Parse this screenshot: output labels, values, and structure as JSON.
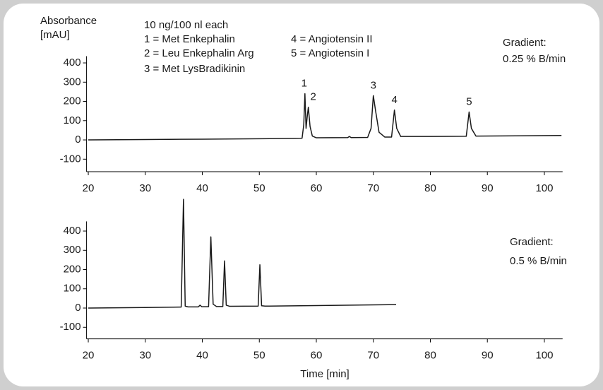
{
  "chart_data": [
    {
      "type": "line",
      "ylabel": [
        "Absorbance",
        "[mAU]"
      ],
      "annotations": [
        "10 ng/100 nl each",
        "1 = Met Enkephalin",
        "2 = Leu Enkephalin Arg",
        "3 = Met LysBradikinin",
        "4 = Angiotensin II",
        "5 = Angiotensin I"
      ],
      "gradient": [
        "Gradient:",
        "0.25 % B/min"
      ],
      "x": [
        20,
        30,
        40,
        50,
        55,
        57.5,
        57.8,
        58.0,
        58.2,
        58.4,
        58.6,
        58.9,
        59.3,
        60,
        65.5,
        65.8,
        66.1,
        69,
        69.6,
        70.0,
        70.4,
        71,
        72,
        73.2,
        73.7,
        74.1,
        74.8,
        80,
        86.3,
        86.8,
        87.2,
        88,
        95,
        103
      ],
      "values": [
        0,
        2,
        4,
        6,
        8,
        9,
        80,
        240,
        60,
        120,
        170,
        70,
        20,
        11,
        12,
        18,
        12,
        13,
        60,
        230,
        150,
        40,
        15,
        15,
        155,
        60,
        18,
        18,
        19,
        145,
        60,
        20,
        21,
        23
      ],
      "color": "#1a1a1a",
      "peak_labels": [
        {
          "label": "1",
          "x": 58.0
        },
        {
          "label": "2",
          "x": 58.6
        },
        {
          "label": "3",
          "x": 70.0
        },
        {
          "label": "4",
          "x": 73.7
        },
        {
          "label": "5",
          "x": 86.8
        }
      ],
      "xlim": [
        19.7,
        103.2
      ],
      "ylim": [
        -165,
        435
      ],
      "xticks": [
        20,
        30,
        40,
        50,
        60,
        70,
        80,
        90,
        100
      ],
      "yticks": [
        -100,
        0,
        100,
        200,
        300,
        400
      ]
    },
    {
      "type": "line",
      "gradient": [
        "Gradient:",
        "0.5 % B/min"
      ],
      "xlabel": "Time [min]",
      "x": [
        20,
        30,
        36.3,
        36.7,
        37.0,
        37.5,
        39.3,
        39.6,
        39.9,
        41.1,
        41.5,
        41.9,
        42.5,
        43.6,
        43.9,
        44.2,
        44.8,
        49.8,
        50.1,
        50.4,
        51,
        60,
        74
      ],
      "values": [
        0,
        3,
        5,
        565,
        10,
        6,
        6,
        15,
        7,
        7,
        370,
        20,
        8,
        8,
        245,
        15,
        9,
        10,
        225,
        12,
        10,
        13,
        18
      ],
      "color": "#1a1a1a",
      "xlim": [
        19.7,
        103.2
      ],
      "ylim": [
        -160,
        450
      ],
      "xticks": [
        20,
        30,
        40,
        50,
        60,
        70,
        80,
        90,
        100
      ],
      "yticks": [
        -100,
        0,
        100,
        200,
        300,
        400
      ]
    }
  ]
}
